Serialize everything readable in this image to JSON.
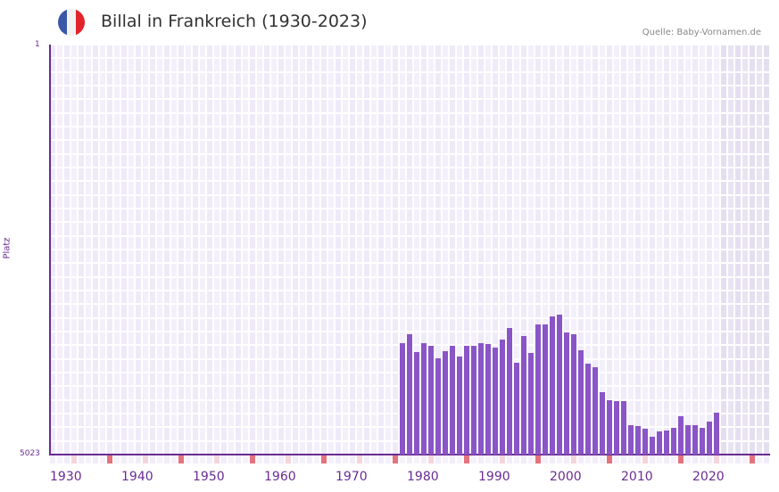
{
  "header": {
    "title": "Billal in Frankreich (1930-2023)",
    "source": "Quelle: Baby-Vornamen.de",
    "flag_colors": [
      "#3a57a7",
      "#f2f2f2",
      "#e3232c"
    ]
  },
  "axes": {
    "y_top_label": "1",
    "y_bottom_label": "5023",
    "y_title": "Platz",
    "x_labels": [
      "1930",
      "1940",
      "1950",
      "1960",
      "1970",
      "1980",
      "1990",
      "2000",
      "2010",
      "2020"
    ]
  },
  "colors": {
    "bar": "#8a55c7",
    "axis": "#6a2c91",
    "grid_a": "#efeaf8",
    "grid_b": "#f3f0fb",
    "future_a": "#e4dff0",
    "future_b": "#e8e4f2",
    "decade_marker": "#e5737d",
    "half_decade_marker": "#f5d5dd"
  },
  "chart_data": {
    "type": "bar",
    "title": "Billal in Frankreich (1930-2023)",
    "xlabel": "",
    "ylabel": "Platz",
    "ylim": [
      5023,
      1
    ],
    "y_inverted": true,
    "x_range": [
      1930,
      2036
    ],
    "grid": true,
    "x": [
      1979,
      1980,
      1981,
      1982,
      1983,
      1984,
      1985,
      1986,
      1987,
      1988,
      1989,
      1990,
      1991,
      1992,
      1993,
      1994,
      1995,
      1996,
      1997,
      1998,
      1999,
      2000,
      2001,
      2002,
      2003,
      2004,
      2005,
      2006,
      2007,
      2008,
      2009,
      2010,
      2011,
      2012,
      2013,
      2014,
      2015,
      2016,
      2017,
      2018,
      2019,
      2020,
      2021,
      2022,
      2023
    ],
    "values": [
      3658,
      3549,
      3767,
      3658,
      3689,
      3843,
      3756,
      3689,
      3822,
      3689,
      3689,
      3658,
      3668,
      3711,
      3614,
      3472,
      3897,
      3570,
      3778,
      3429,
      3429,
      3331,
      3309,
      3527,
      3549,
      3745,
      3909,
      3953,
      4259,
      4357,
      4368,
      4368,
      4663,
      4674,
      4707,
      4805,
      4740,
      4729,
      4696,
      4554,
      4663,
      4663,
      4696,
      4620,
      4510
    ]
  }
}
